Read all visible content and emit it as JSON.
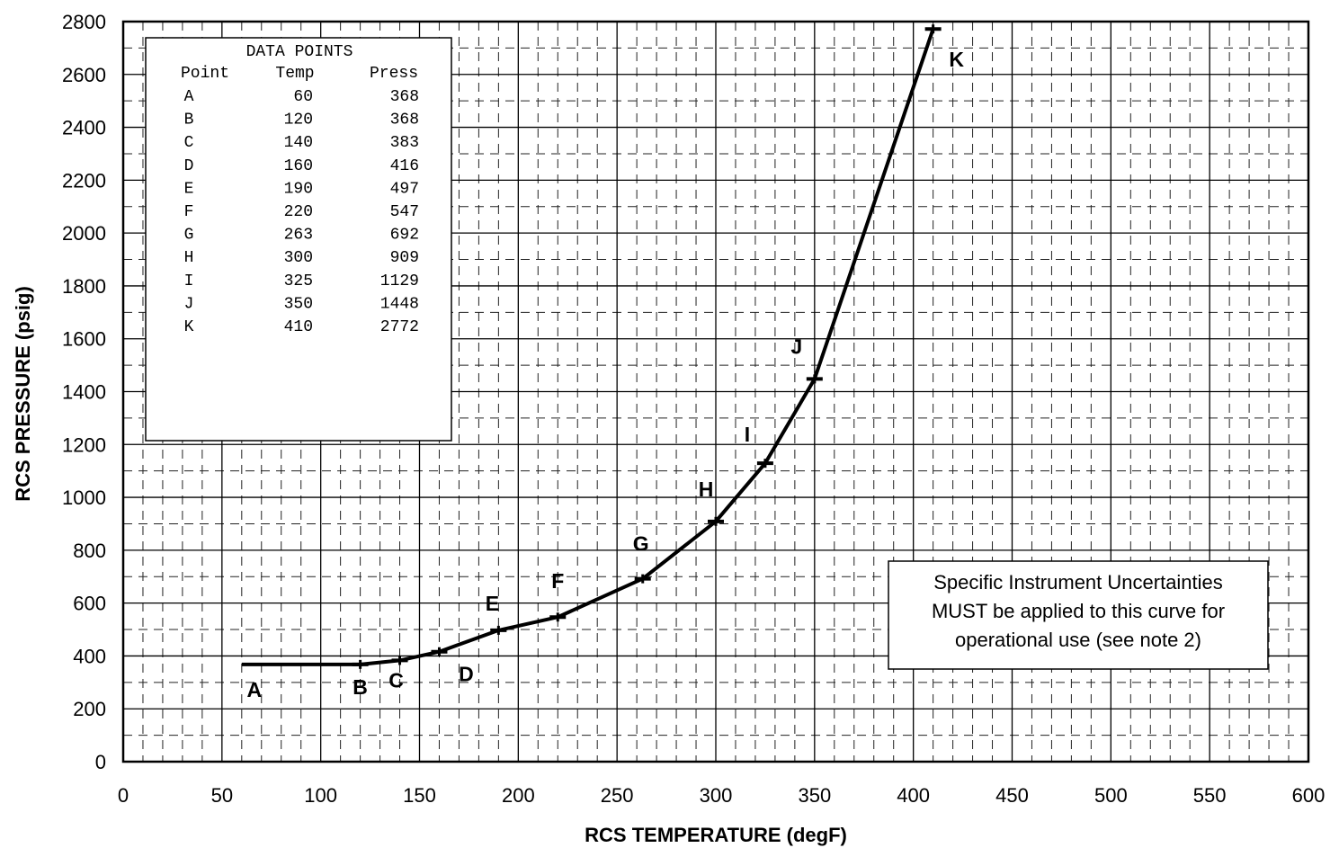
{
  "chart_data": {
    "type": "line",
    "xlabel": "RCS TEMPERATURE (degF)",
    "ylabel": "RCS PRESSURE (psig)",
    "xlim": [
      0,
      600
    ],
    "ylim": [
      0,
      2800
    ],
    "x_ticks": [
      "0",
      "50",
      "100",
      "150",
      "200",
      "250",
      "300",
      "350",
      "400",
      "450",
      "500",
      "550",
      "600"
    ],
    "y_ticks": [
      "0",
      "200",
      "400",
      "600",
      "800",
      "1000",
      "1200",
      "1400",
      "1600",
      "1800",
      "2000",
      "2200",
      "2400",
      "2600",
      "2800"
    ],
    "grid": true,
    "series": [
      {
        "points": [
          {
            "label": "A",
            "x": 60,
            "y": 368
          },
          {
            "label": "B",
            "x": 120,
            "y": 368
          },
          {
            "label": "C",
            "x": 140,
            "y": 383
          },
          {
            "label": "D",
            "x": 160,
            "y": 416
          },
          {
            "label": "E",
            "x": 190,
            "y": 497
          },
          {
            "label": "F",
            "x": 220,
            "y": 547
          },
          {
            "label": "G",
            "x": 263,
            "y": 692
          },
          {
            "label": "H",
            "x": 300,
            "y": 909
          },
          {
            "label": "I",
            "x": 325,
            "y": 1129
          },
          {
            "label": "J",
            "x": 350,
            "y": 1448
          },
          {
            "label": "K",
            "x": 410,
            "y": 2772
          }
        ]
      }
    ],
    "data_table": {
      "title": "DATA POINTS",
      "headers": [
        "Point",
        "Temp",
        "Press"
      ],
      "rows": [
        [
          "A",
          "60",
          "368"
        ],
        [
          "B",
          "120",
          "368"
        ],
        [
          "C",
          "140",
          "383"
        ],
        [
          "D",
          "160",
          "416"
        ],
        [
          "E",
          "190",
          "497"
        ],
        [
          "F",
          "220",
          "547"
        ],
        [
          "G",
          "263",
          "692"
        ],
        [
          "H",
          "300",
          "909"
        ],
        [
          "I",
          "325",
          "1129"
        ],
        [
          "J",
          "350",
          "1448"
        ],
        [
          "K",
          "410",
          "2772"
        ]
      ],
      "placement": "top-left"
    },
    "note": {
      "lines": [
        "Specific Instrument Uncertainties",
        "MUST be applied to this curve for",
        "operational use (see note 2)"
      ],
      "placement": "bottom-right"
    }
  }
}
